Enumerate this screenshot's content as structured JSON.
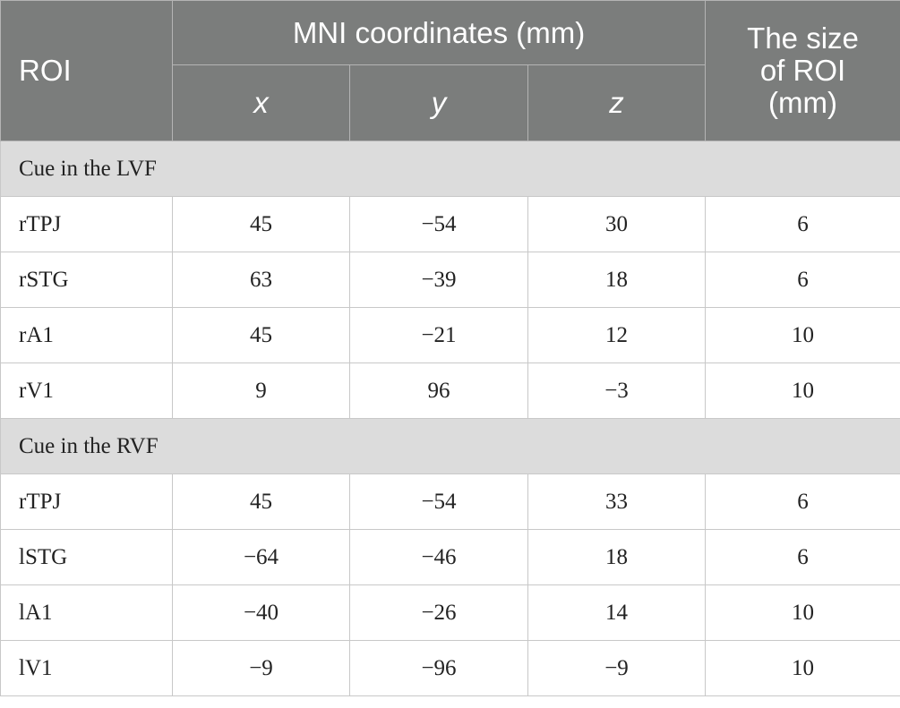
{
  "header": {
    "roi": "ROI",
    "mni": "MNI coordinates (mm)",
    "axes": [
      "x",
      "y",
      "z"
    ],
    "size_lines": [
      "The size",
      "of ROI",
      "(mm)"
    ]
  },
  "sections": [
    {
      "label": "Cue in the LVF",
      "rows": [
        {
          "roi": "rTPJ",
          "x": "45",
          "y": "−54",
          "z": "30",
          "size": "6"
        },
        {
          "roi": "rSTG",
          "x": "63",
          "y": "−39",
          "z": "18",
          "size": "6"
        },
        {
          "roi": "rA1",
          "x": "45",
          "y": "−21",
          "z": "12",
          "size": "10"
        },
        {
          "roi": "rV1",
          "x": "9",
          "y": "96",
          "z": "−3",
          "size": "10"
        }
      ]
    },
    {
      "label": "Cue in the RVF",
      "rows": [
        {
          "roi": "rTPJ",
          "x": "45",
          "y": "−54",
          "z": "33",
          "size": "6"
        },
        {
          "roi": "lSTG",
          "x": "−64",
          "y": "−46",
          "z": "18",
          "size": "6"
        },
        {
          "roi": "lA1",
          "x": "−40",
          "y": "−26",
          "z": "14",
          "size": "10"
        },
        {
          "roi": "lV1",
          "x": "−9",
          "y": "−96",
          "z": "−9",
          "size": "10"
        }
      ]
    }
  ]
}
